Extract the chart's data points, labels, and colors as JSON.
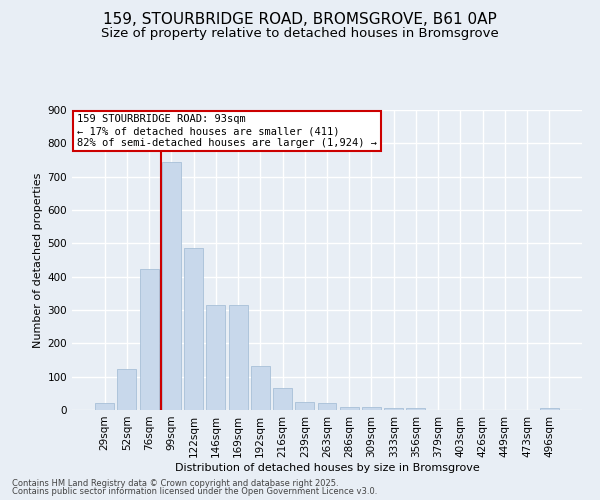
{
  "title1": "159, STOURBRIDGE ROAD, BROMSGROVE, B61 0AP",
  "title2": "Size of property relative to detached houses in Bromsgrove",
  "xlabel": "Distribution of detached houses by size in Bromsgrove",
  "ylabel": "Number of detached properties",
  "categories": [
    "29sqm",
    "52sqm",
    "76sqm",
    "99sqm",
    "122sqm",
    "146sqm",
    "169sqm",
    "192sqm",
    "216sqm",
    "239sqm",
    "263sqm",
    "286sqm",
    "309sqm",
    "333sqm",
    "356sqm",
    "379sqm",
    "403sqm",
    "426sqm",
    "449sqm",
    "473sqm",
    "496sqm"
  ],
  "values": [
    20,
    122,
    422,
    745,
    485,
    315,
    315,
    133,
    65,
    25,
    20,
    10,
    8,
    5,
    5,
    0,
    0,
    0,
    0,
    0,
    7
  ],
  "bar_color": "#c8d8eb",
  "bar_edge_color": "#a8c0d8",
  "vline_color": "#cc0000",
  "vline_x_index": 3,
  "annotation_text": "159 STOURBRIDGE ROAD: 93sqm\n← 17% of detached houses are smaller (411)\n82% of semi-detached houses are larger (1,924) →",
  "annotation_box_color": "#cc0000",
  "annotation_bg": "#ffffff",
  "ylim": [
    0,
    900
  ],
  "yticks": [
    0,
    100,
    200,
    300,
    400,
    500,
    600,
    700,
    800,
    900
  ],
  "footer1": "Contains HM Land Registry data © Crown copyright and database right 2025.",
  "footer2": "Contains public sector information licensed under the Open Government Licence v3.0.",
  "bg_color": "#e8eef5",
  "plot_bg_color": "#e8eef5",
  "grid_color": "#ffffff",
  "title1_fontsize": 11,
  "title2_fontsize": 9.5,
  "axis_label_fontsize": 8,
  "tick_fontsize": 7.5,
  "footer_fontsize": 6
}
